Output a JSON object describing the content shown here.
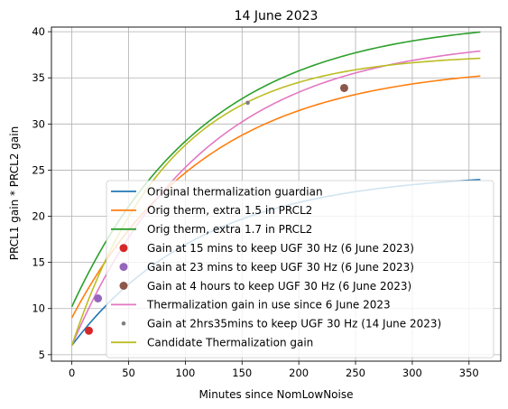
{
  "chart_data": {
    "type": "line",
    "title": "14 June 2023",
    "xlabel": "Minutes since NomLowNoise",
    "ylabel": "PRCL1 gain * PRCL2 gain",
    "xlim": [
      -18,
      378
    ],
    "ylim": [
      4.3,
      40.5
    ],
    "xticks": [
      0,
      50,
      100,
      150,
      200,
      250,
      300,
      350
    ],
    "yticks": [
      5,
      10,
      15,
      20,
      25,
      30,
      35,
      40
    ],
    "grid": true,
    "legend_position": "lower-right",
    "curves": [
      {
        "name": "Original thermalization guardian",
        "color": "#1f77b4",
        "y0": 6.0,
        "yinf": 24.8,
        "tau": 115
      },
      {
        "name": "Orig therm, extra 1.5 in PRCL2",
        "color": "#ff7f0e",
        "y0": 9.0,
        "yinf": 36.5,
        "tau": 118
      },
      {
        "name": "Orig therm, extra 1.7 in PRCL2",
        "color": "#2ca02c",
        "y0": 10.2,
        "yinf": 41.4,
        "tau": 117
      },
      {
        "name": "Thermalization gain in use since 6 June 2023",
        "color": "#e377c2",
        "y0": 6.0,
        "yinf": 39.4,
        "tau": 116
      },
      {
        "name": "Candidate Thermalization gain",
        "color": "#bcbd22",
        "y0": 6.0,
        "yinf": 37.6,
        "tau": 86
      }
    ],
    "points": [
      {
        "name": "Gain at 15 mins to keep UGF 30 Hz (6 June 2023)",
        "color": "#d62728",
        "x": 15,
        "y": 7.6,
        "size": "large"
      },
      {
        "name": "Gain at 23 mins to keep UGF 30 Hz (6 June 2023)",
        "color": "#9467bd",
        "x": 23,
        "y": 11.1,
        "size": "large"
      },
      {
        "name": "Gain at 4 hours to keep UGF 30 Hz (6 June 2023)",
        "color": "#8c564b",
        "x": 240,
        "y": 33.9,
        "size": "large"
      },
      {
        "name": "Gain at 2hrs35mins to keep UGF 30 Hz (14 June 2023)",
        "color": "#7f7f7f",
        "x": 155,
        "y": 32.3,
        "size": "small"
      }
    ],
    "legend_order": [
      "Original thermalization guardian",
      "Orig therm, extra 1.5 in PRCL2",
      "Orig therm, extra 1.7 in PRCL2",
      "Gain at 15 mins to keep UGF 30 Hz (6 June 2023)",
      "Gain at 23 mins to keep UGF 30 Hz (6 June 2023)",
      "Gain at 4 hours to keep UGF 30 Hz (6 June 2023)",
      "Thermalization gain in use since 6 June 2023",
      "Gain at 2hrs35mins to keep UGF 30 Hz (14 June 2023)",
      "Candidate Thermalization gain"
    ]
  }
}
